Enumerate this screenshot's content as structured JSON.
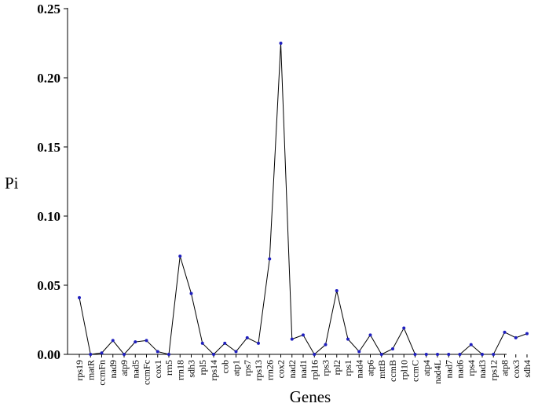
{
  "chart_data": {
    "type": "line",
    "xlabel": "Genes",
    "ylabel": "Pi",
    "ylim": [
      0,
      0.25
    ],
    "yticks": [
      "0.00",
      "0.05",
      "0.10",
      "0.15",
      "0.20",
      "0.25"
    ],
    "grid": false,
    "colors": {
      "line": "#000000",
      "marker": "#1f1fbf"
    },
    "categories": [
      "rps19",
      "matR",
      "ccmFn",
      "nad9",
      "atp9",
      "nad5",
      "ccmFc",
      "cox1",
      "rrn5",
      "rrn18",
      "sdh3",
      "rpl5",
      "rps14",
      "cob",
      "atp1",
      "rps7",
      "rps13",
      "rrn26",
      "cox2",
      "nad2",
      "nad1",
      "rpl16",
      "rps3",
      "rpl2",
      "rps1",
      "nad4",
      "atp6",
      "mttB",
      "ccmB",
      "rpl10",
      "ccmC",
      "atp4",
      "nad4L",
      "nad7",
      "nad6",
      "rps4",
      "nad3",
      "rps12",
      "atp8",
      "cox3",
      "sdh4"
    ],
    "values": [
      0.041,
      0.0,
      0.001,
      0.01,
      0.0,
      0.009,
      0.01,
      0.002,
      0.0,
      0.071,
      0.044,
      0.008,
      0.0,
      0.008,
      0.002,
      0.012,
      0.008,
      0.069,
      0.225,
      0.011,
      0.014,
      0.0,
      0.007,
      0.046,
      0.011,
      0.002,
      0.014,
      0.0,
      0.004,
      0.019,
      0.0,
      0.0,
      0.0,
      0.0,
      0.0,
      0.007,
      0.0,
      0.0,
      0.016,
      0.012,
      0.015
    ]
  }
}
